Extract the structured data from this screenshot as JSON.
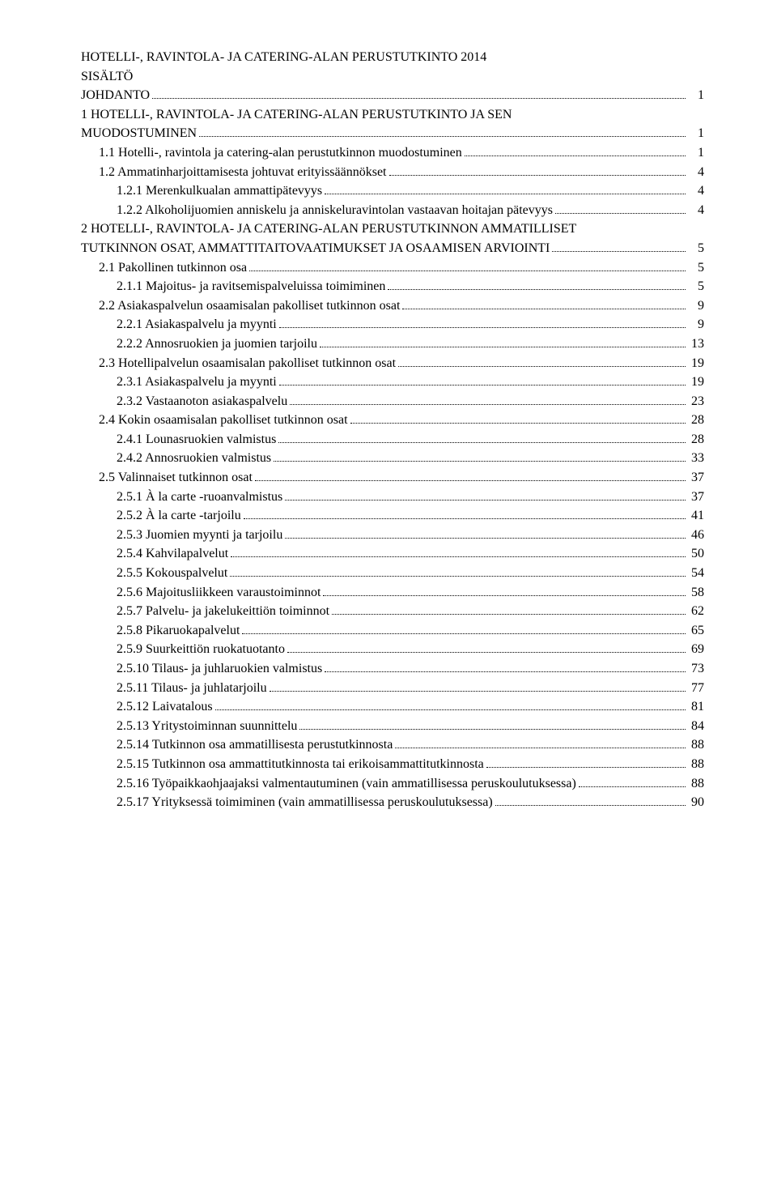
{
  "title_line1": "HOTELLI-, RAVINTOLA- JA CATERING-ALAN PERUSTUTKINTO 2014",
  "title_line2": "SISÄLTÖ",
  "toc": [
    {
      "label": "JOHDANTO",
      "page": "1",
      "level": "top"
    },
    {
      "label": "1 HOTELLI-, RAVINTOLA- JA CATERING-ALAN PERUSTUTKINTO JA SEN",
      "page": "",
      "level": "top",
      "nodots": true
    },
    {
      "label": "MUODOSTUMINEN",
      "page": "1",
      "level": "top"
    },
    {
      "label": "1.1 Hotelli-, ravintola ja catering-alan perustutkinnon muodostuminen",
      "page": "1",
      "level": 1
    },
    {
      "label": "1.2 Ammatinharjoittamisesta johtuvat erityissäännökset",
      "page": "4",
      "level": 1
    },
    {
      "label": "1.2.1 Merenkulkualan ammattipätevyys",
      "page": "4",
      "level": 2
    },
    {
      "label": "1.2.2 Alkoholijuomien anniskelu ja anniskeluravintolan vastaavan hoitajan pätevyys",
      "page": "4",
      "level": 2
    },
    {
      "label": "2 HOTELLI-, RAVINTOLA- JA CATERING-ALAN PERUSTUTKINNON AMMATILLISET",
      "page": "",
      "level": "top",
      "nodots": true
    },
    {
      "label": "TUTKINNON OSAT, AMMATTITAITOVAATIMUKSET JA OSAAMISEN ARVIOINTI",
      "page": "5",
      "level": "top"
    },
    {
      "label": "2.1 Pakollinen tutkinnon osa",
      "page": "5",
      "level": 1
    },
    {
      "label": "2.1.1 Majoitus- ja ravitsemispalveluissa toimiminen",
      "page": "5",
      "level": 2
    },
    {
      "label": "2.2 Asiakaspalvelun osaamisalan pakolliset tutkinnon osat",
      "page": "9",
      "level": 1
    },
    {
      "label": "2.2.1 Asiakaspalvelu ja myynti",
      "page": "9",
      "level": 2
    },
    {
      "label": "2.2.2 Annosruokien ja juomien tarjoilu",
      "page": "13",
      "level": 2
    },
    {
      "label": "2.3 Hotellipalvelun osaamisalan pakolliset tutkinnon osat",
      "page": "19",
      "level": 1
    },
    {
      "label": "2.3.1 Asiakaspalvelu ja myynti",
      "page": "19",
      "level": 2
    },
    {
      "label": "2.3.2 Vastaanoton asiakaspalvelu",
      "page": "23",
      "level": 2
    },
    {
      "label": "2.4 Kokin osaamisalan pakolliset tutkinnon osat",
      "page": "28",
      "level": 1
    },
    {
      "label": "2.4.1 Lounasruokien valmistus",
      "page": "28",
      "level": 2
    },
    {
      "label": "2.4.2 Annosruokien valmistus",
      "page": "33",
      "level": 2
    },
    {
      "label": "2.5 Valinnaiset tutkinnon osat",
      "page": "37",
      "level": 1
    },
    {
      "label": "2.5.1 À la carte -ruoanvalmistus",
      "page": "37",
      "level": 2
    },
    {
      "label": "2.5.2 À la carte -tarjoilu",
      "page": "41",
      "level": 2
    },
    {
      "label": "2.5.3 Juomien myynti ja tarjoilu",
      "page": "46",
      "level": 2
    },
    {
      "label": "2.5.4 Kahvilapalvelut",
      "page": "50",
      "level": 2
    },
    {
      "label": "2.5.5 Kokouspalvelut",
      "page": "54",
      "level": 2
    },
    {
      "label": "2.5.6 Majoitusliikkeen varaustoiminnot",
      "page": "58",
      "level": 2
    },
    {
      "label": "2.5.7 Palvelu- ja jakelukeittiön toiminnot",
      "page": "62",
      "level": 2
    },
    {
      "label": "2.5.8 Pikaruokapalvelut",
      "page": "65",
      "level": 2
    },
    {
      "label": "2.5.9 Suurkeittiön ruokatuotanto",
      "page": "69",
      "level": 2
    },
    {
      "label": "2.5.10 Tilaus- ja juhlaruokien valmistus",
      "page": "73",
      "level": 2
    },
    {
      "label": "2.5.11 Tilaus- ja juhlatarjoilu",
      "page": "77",
      "level": 2
    },
    {
      "label": "2.5.12 Laivatalous",
      "page": "81",
      "level": 2
    },
    {
      "label": "2.5.13 Yritystoiminnan suunnittelu",
      "page": "84",
      "level": 2
    },
    {
      "label": "2.5.14 Tutkinnon osa ammatillisesta perustutkinnosta",
      "page": "88",
      "level": 2
    },
    {
      "label": "2.5.15 Tutkinnon osa ammattitutkinnosta tai erikoisammattitutkinnosta",
      "page": "88",
      "level": 2
    },
    {
      "label": "2.5.16 Työpaikkaohjaajaksi valmentautuminen (vain ammatillisessa peruskoulutuksessa)",
      "page": "88",
      "level": 2
    },
    {
      "label": "2.5.17 Yrityksessä toimiminen (vain ammatillisessa peruskoulutuksessa)",
      "page": "90",
      "level": 2
    }
  ]
}
